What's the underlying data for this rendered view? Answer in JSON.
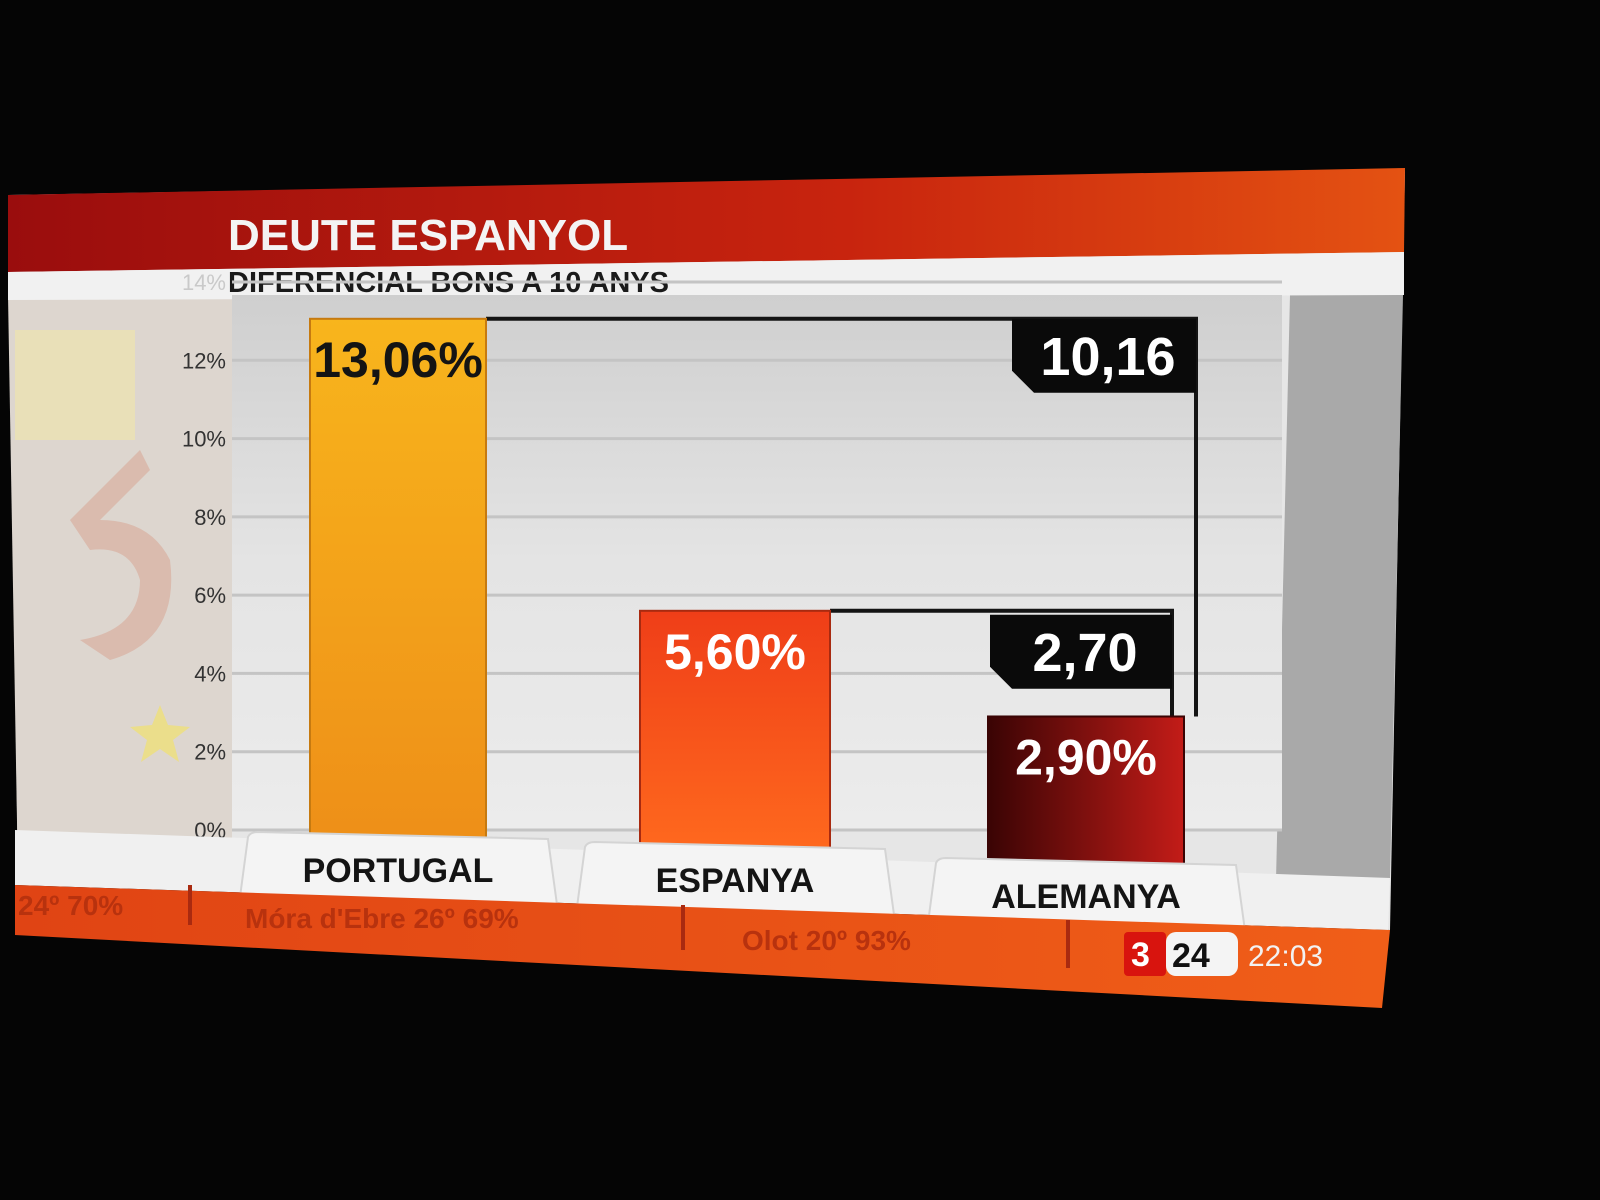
{
  "header": {
    "title": "DEUTE ESPANYOL",
    "subtitle": "DIFERENCIAL BONS A 10 ANYS"
  },
  "colors": {
    "portugal_bar": "#f2a21a",
    "espanya_bar": "#e8401a",
    "alemanya_bar": "#8a1010",
    "header_red": "#b81a10",
    "spread_box": "#0a0a0a"
  },
  "chart_data": {
    "type": "bar",
    "title": "DEUTE ESPANYOL",
    "subtitle": "DIFERENCIAL BONS A 10 ANYS",
    "categories": [
      "PORTUGAL",
      "ESPANYA",
      "ALEMANYA"
    ],
    "values": [
      13.06,
      5.6,
      2.9
    ],
    "value_labels": [
      "13,06%",
      "5,60%",
      "2,90%"
    ],
    "ylim": [
      0,
      14
    ],
    "yticks": [
      0,
      2,
      4,
      6,
      8,
      10,
      12,
      14
    ],
    "ytick_labels": [
      "0%",
      "2%",
      "4%",
      "6%",
      "8%",
      "10%",
      "12%",
      "14%"
    ],
    "grid": true,
    "differentials": [
      {
        "from": "PORTUGAL",
        "to": "ALEMANYA",
        "value": 10.16,
        "label": "10,16"
      },
      {
        "from": "ESPANYA",
        "to": "ALEMANYA",
        "value": 2.7,
        "label": "2,70"
      }
    ]
  },
  "ticker": {
    "items": [
      "24º 70%",
      "Móra d'Ebre 26º 69%",
      "Olot 20º 93%"
    ],
    "channel_logo": [
      "3",
      "24"
    ],
    "time": "22:03"
  }
}
